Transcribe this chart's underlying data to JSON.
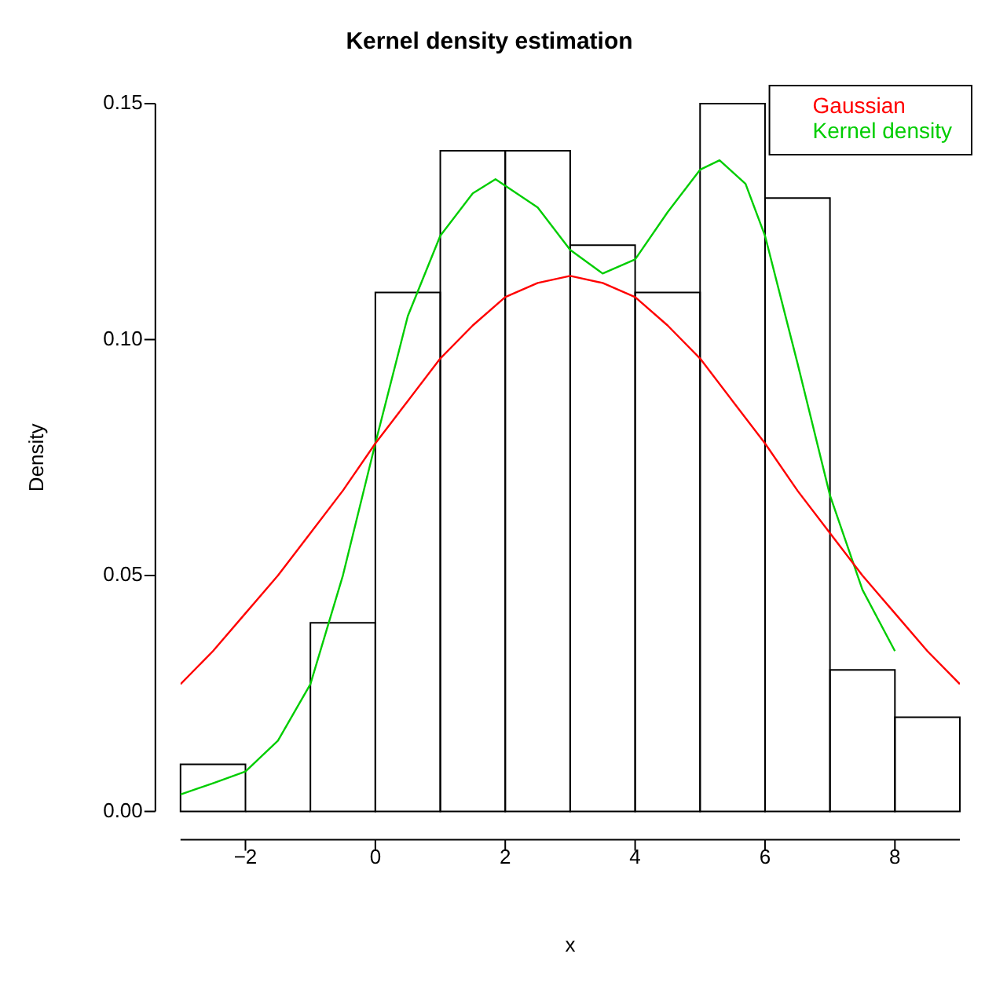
{
  "chart_data": {
    "type": "histogram",
    "title": "Kernel density estimation",
    "xlabel": "x",
    "ylabel": "Density",
    "bins": [
      -3,
      -2,
      -1,
      0,
      1,
      2,
      3,
      4,
      5,
      6,
      7,
      8,
      9
    ],
    "values": [
      0.01,
      0,
      0.04,
      0.11,
      0.14,
      0.14,
      0.12,
      0.11,
      0.15,
      0.13,
      0.03,
      0.02
    ],
    "color": "#000000",
    "series": [
      {
        "type": "line",
        "name": "Gaussian",
        "color": "#ff0000",
        "x": [
          -3,
          -2.5,
          -2,
          -1.5,
          -1,
          -0.5,
          0,
          0.5,
          1,
          1.5,
          2,
          2.5,
          3,
          3.5,
          4,
          4.5,
          5,
          5.5,
          6,
          6.5,
          7,
          7.5,
          8,
          8.5,
          9
        ],
        "values": [
          0.027,
          0.034,
          0.042,
          0.05,
          0.059,
          0.068,
          0.078,
          0.087,
          0.096,
          0.103,
          0.109,
          0.112,
          0.1135,
          0.112,
          0.109,
          0.103,
          0.096,
          0.087,
          0.078,
          0.068,
          0.059,
          0.05,
          0.042,
          0.034,
          0.027
        ]
      },
      {
        "type": "line",
        "name": "Kernel density",
        "color": "#00cd00",
        "x": [
          -3,
          -2.5,
          -2,
          -1.5,
          -1,
          -0.5,
          0,
          0.5,
          1,
          1.5,
          1.85,
          2.5,
          3,
          3.5,
          4,
          4.5,
          5,
          5.3,
          5.7,
          6,
          6.5,
          7,
          7.5,
          8
        ],
        "values": [
          0.0036,
          0.006,
          0.0085,
          0.015,
          0.027,
          0.05,
          0.078,
          0.105,
          0.122,
          0.131,
          0.134,
          0.128,
          0.119,
          0.114,
          0.117,
          0.127,
          0.136,
          0.138,
          0.133,
          0.122,
          0.095,
          0.067,
          0.047,
          0.034
        ]
      }
    ],
    "xlim": [
      -3,
      9
    ],
    "xticks": [
      -2,
      0,
      2,
      4,
      6,
      8
    ],
    "ylim": [
      0,
      0.15
    ],
    "yticks": [
      {
        "value": 0,
        "label": "0.00"
      },
      {
        "value": 0.05,
        "label": "0.05"
      },
      {
        "value": 0.1,
        "label": "0.10"
      },
      {
        "value": 0.15,
        "label": "0.15"
      }
    ],
    "grid": false,
    "legend": "top right",
    "marker": "none",
    "line_style": "solid"
  }
}
